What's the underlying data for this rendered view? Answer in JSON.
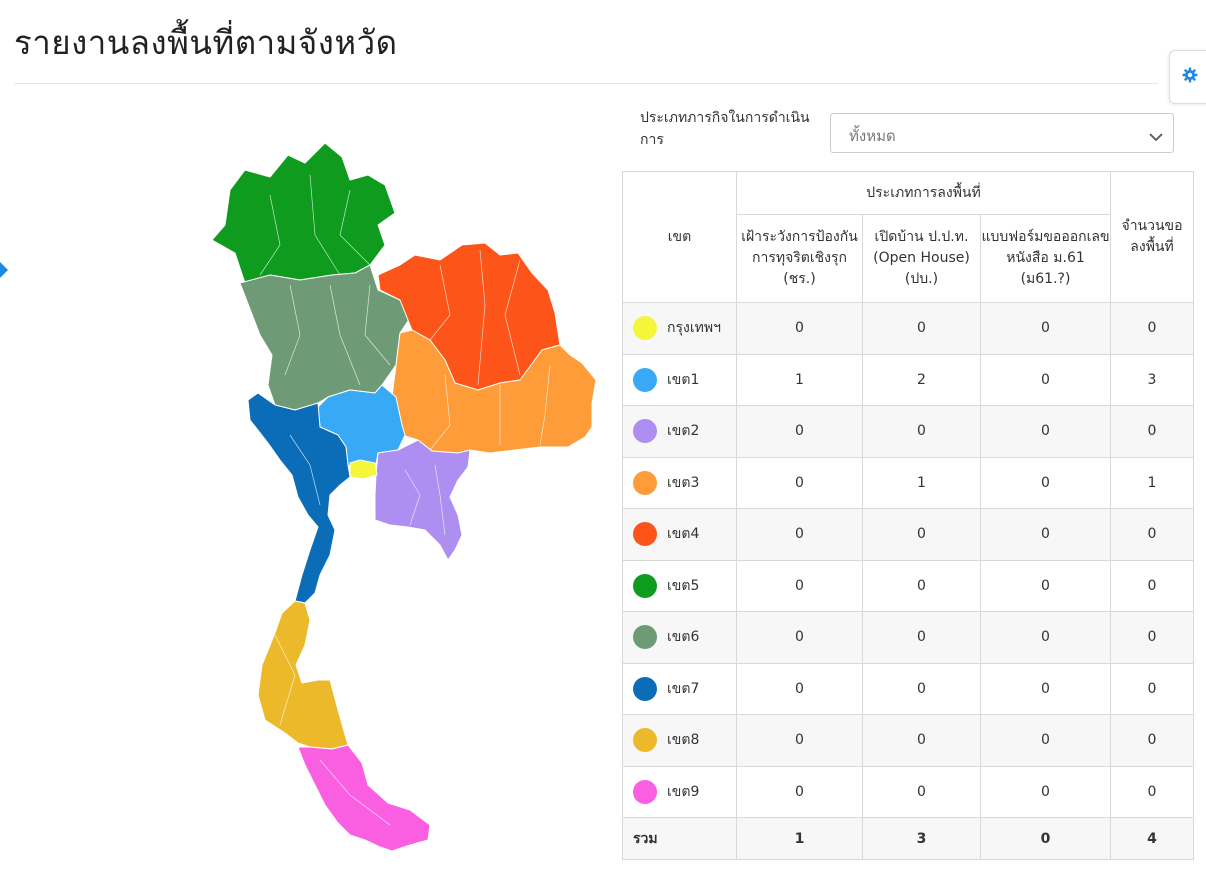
{
  "page": {
    "title": "รายงานลงพื้นที่ตามจังหวัด"
  },
  "filter": {
    "label": "ประเภทภารกิจในการดำเนินการ",
    "selected": "ทั้งหมด"
  },
  "table": {
    "header_zone": "เขต",
    "header_group": "ประเภทการลงพื้นที่",
    "header_total": "จำนวนขอลงพื้นที่",
    "columns": [
      "เฝ้าระวังการป้องกันการทุจริตเชิงรุก (ชร.)",
      "เปิดบ้าน ป.ป.ท. (Open House) (ปบ.)",
      "แบบฟอร์มขอออกเลขหนังสือ ม.61 (ม61.?)"
    ],
    "rows": [
      {
        "zone": "กรุงเทพฯ",
        "color": "#f5f53a",
        "values": [
          0,
          0,
          0
        ],
        "total": 0
      },
      {
        "zone": "เขต1",
        "color": "#38aaf5",
        "values": [
          1,
          2,
          0
        ],
        "total": 3
      },
      {
        "zone": "เขต2",
        "color": "#ad8ff2",
        "values": [
          0,
          0,
          0
        ],
        "total": 0
      },
      {
        "zone": "เขต3",
        "color": "#fd9c38",
        "values": [
          0,
          1,
          0
        ],
        "total": 1
      },
      {
        "zone": "เขต4",
        "color": "#fd5419",
        "values": [
          0,
          0,
          0
        ],
        "total": 0
      },
      {
        "zone": "เขต5",
        "color": "#0e9b1e",
        "values": [
          0,
          0,
          0
        ],
        "total": 0
      },
      {
        "zone": "เขต6",
        "color": "#6e9b75",
        "values": [
          0,
          0,
          0
        ],
        "total": 0
      },
      {
        "zone": "เขต7",
        "color": "#0b6db8",
        "values": [
          0,
          0,
          0
        ],
        "total": 0
      },
      {
        "zone": "เขต8",
        "color": "#ecb92a",
        "values": [
          0,
          0,
          0
        ],
        "total": 0
      },
      {
        "zone": "เขต9",
        "color": "#fb5fe1",
        "values": [
          0,
          0,
          0
        ],
        "total": 0
      }
    ],
    "total_row": {
      "label": "รวม",
      "values": [
        1,
        3,
        0
      ],
      "total": 4
    }
  },
  "icons": {
    "settings": "gear-icon",
    "dropdown": "chevron-down-icon",
    "side_toggle": "caret-right-icon"
  },
  "colors": {
    "accent": "#1e88e5"
  }
}
